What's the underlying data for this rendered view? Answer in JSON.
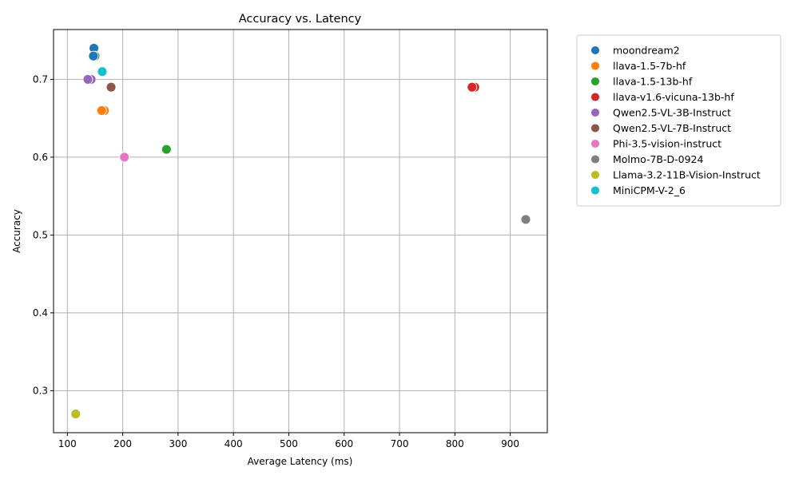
{
  "chart_data": {
    "type": "scatter",
    "title": "Accuracy vs. Latency",
    "xlabel": "Average Latency (ms)",
    "ylabel": "Accuracy",
    "xlim": [
      75,
      967
    ],
    "ylim": [
      0.246,
      0.764
    ],
    "xticks": [
      100,
      200,
      300,
      400,
      500,
      600,
      700,
      800,
      900
    ],
    "yticks": [
      0.3,
      0.4,
      0.5,
      0.6,
      0.7
    ],
    "ytick_labels": [
      "0.3",
      "0.4",
      "0.5",
      "0.6",
      "0.7"
    ],
    "grid": true,
    "legend_position": "outside-right",
    "series": [
      {
        "name": "moondream2",
        "color": "#1f77b4",
        "points": [
          {
            "x": 148,
            "y": 0.74
          },
          {
            "x": 150,
            "y": 0.73
          },
          {
            "x": 147,
            "y": 0.73
          }
        ]
      },
      {
        "name": "llava-1.5-7b-hf",
        "color": "#ff7f0e",
        "points": [
          {
            "x": 167,
            "y": 0.66
          },
          {
            "x": 162,
            "y": 0.66
          }
        ]
      },
      {
        "name": "llava-1.5-13b-hf",
        "color": "#2ca02c",
        "points": [
          {
            "x": 279,
            "y": 0.61
          }
        ]
      },
      {
        "name": "llava-v1.6-vicuna-13b-hf",
        "color": "#d62728",
        "points": [
          {
            "x": 836,
            "y": 0.69
          },
          {
            "x": 831,
            "y": 0.69
          }
        ]
      },
      {
        "name": "Qwen2.5-VL-3B-Instruct",
        "color": "#9467bd",
        "points": [
          {
            "x": 143,
            "y": 0.7
          },
          {
            "x": 137,
            "y": 0.7
          }
        ]
      },
      {
        "name": "Qwen2.5-VL-7B-Instruct",
        "color": "#8c564b",
        "points": [
          {
            "x": 179,
            "y": 0.69
          }
        ]
      },
      {
        "name": "Phi-3.5-vision-instruct",
        "color": "#e377c2",
        "points": [
          {
            "x": 203,
            "y": 0.6
          }
        ]
      },
      {
        "name": "Molmo-7B-D-0924",
        "color": "#7f7f7f",
        "points": [
          {
            "x": 928,
            "y": 0.52
          }
        ]
      },
      {
        "name": "Llama-3.2-11B-Vision-Instruct",
        "color": "#bcbd22",
        "points": [
          {
            "x": 115,
            "y": 0.27
          }
        ]
      },
      {
        "name": "MiniCPM-V-2_6",
        "color": "#17becf",
        "points": [
          {
            "x": 163,
            "y": 0.71
          }
        ]
      }
    ]
  }
}
